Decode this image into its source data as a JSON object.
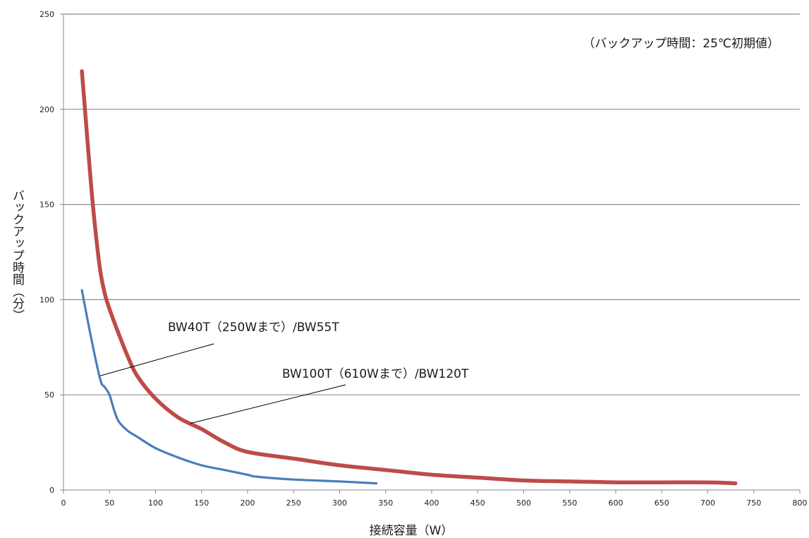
{
  "chart_data": {
    "type": "line",
    "note": "（バックアップ時間：25℃初期値）",
    "xlabel": "接続容量（W）",
    "ylabel": "バックアップ時間（分）",
    "xlim": [
      0,
      800
    ],
    "ylim": [
      0,
      250
    ],
    "xticks": [
      0,
      50,
      100,
      150,
      200,
      250,
      300,
      350,
      400,
      450,
      500,
      550,
      600,
      650,
      700,
      750,
      800
    ],
    "yticks": [
      0,
      50,
      100,
      150,
      200,
      250
    ],
    "grid": "horizontal",
    "series": [
      {
        "name": "BW40T（250Wまで）/BW55T",
        "color": "#4a7ebb",
        "x": [
          20,
          30,
          40,
          45,
          50,
          55,
          60,
          70,
          80,
          100,
          125,
          150,
          175,
          200,
          210,
          250,
          300,
          340
        ],
        "y": [
          105,
          80,
          58,
          54,
          50,
          42,
          36,
          31,
          28,
          22,
          17,
          13,
          10.5,
          8,
          7,
          5.5,
          4.5,
          3.5
        ]
      },
      {
        "name": "BW100T（610Wまで）/BW120T",
        "color": "#be4b48",
        "x": [
          20,
          25,
          30,
          35,
          40,
          45,
          50,
          60,
          70,
          80,
          100,
          125,
          150,
          175,
          200,
          250,
          300,
          350,
          400,
          450,
          500,
          550,
          600,
          650,
          700,
          730
        ],
        "y": [
          220,
          190,
          160,
          135,
          115,
          103,
          95,
          82,
          70,
          60,
          48,
          38,
          32,
          25,
          20,
          16.5,
          13,
          10.5,
          8,
          6.5,
          5,
          4.5,
          4,
          4,
          4,
          3.5
        ]
      }
    ],
    "annotations": [
      {
        "text": "BW40T（250Wまで）/BW55T",
        "target_series": 0,
        "target_x": 40,
        "target_y": 60
      },
      {
        "text": "BW100T（610Wまで）/BW120T",
        "target_series": 1,
        "target_x": 138,
        "target_y": 35
      }
    ]
  }
}
